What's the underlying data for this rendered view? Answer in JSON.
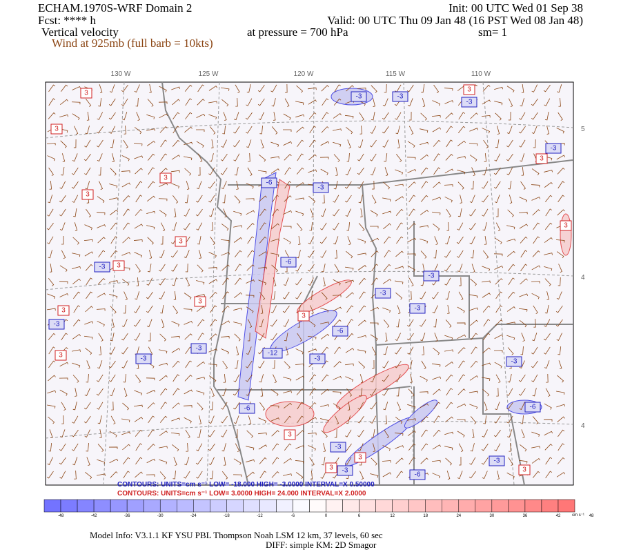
{
  "header": {
    "model": "ECHAM.1970S-WRF Domain 2",
    "init": "Init: 00 UTC Wed 01 Sep 38",
    "fcst": "Fcst: **** h",
    "valid": "Valid: 00 UTC Thu 09 Jan 48 (16 PST Wed 08 Jan 48)",
    "field": "Vertical velocity",
    "pressure": "at pressure =  700 hPa",
    "smoothing": "sm= 1",
    "wind": "Wind at 925mb (full barb = 10kts)"
  },
  "map": {
    "longitudes": [
      "130 W",
      "125 W",
      "120 W",
      "115 W",
      "110 W"
    ],
    "latitudes": [
      "5",
      "4",
      "4"
    ],
    "contour_labels": [
      "3",
      "-3",
      "-3",
      "-3",
      "3",
      "3",
      "-3",
      "3",
      "3",
      "-6",
      "-3",
      "3",
      "3",
      "3",
      "-3",
      "3",
      "-6",
      "-3",
      "-3",
      "3",
      "3",
      "-3",
      "3",
      "-3",
      "-3",
      "-12",
      "-6",
      "3",
      "-3",
      "-3",
      "-3",
      "-6",
      "-6",
      "3",
      "-3",
      "3",
      "3",
      "-3",
      "-6",
      "-3",
      "3"
    ]
  },
  "contours": {
    "negative": "CONTOURS:  UNITS=cm s⁻¹  LOW= -18.000   HIGH= -3.0000     INTERVAL=X 0.50000",
    "positive": "CONTOURS:  UNITS=cm s⁻¹  LOW=  3.0000     HIGH=  24.000     INTERVAL=X  2.0000"
  },
  "colorbar": {
    "ticks": [
      "-48",
      "-42",
      "-36",
      "-30",
      "-24",
      "-18",
      "-12",
      "-6",
      "0",
      "6",
      "12",
      "18",
      "24",
      "30",
      "36",
      "42",
      "48"
    ],
    "unit": "cm s⁻¹"
  },
  "footer": {
    "line1": "Model Info: V3.1.1     KF        YSU PBL   Thompson      Noah LSM   12 km,     37 levels,     60 sec",
    "line2": "DIFF: simple KM: 2D Smagor"
  }
}
